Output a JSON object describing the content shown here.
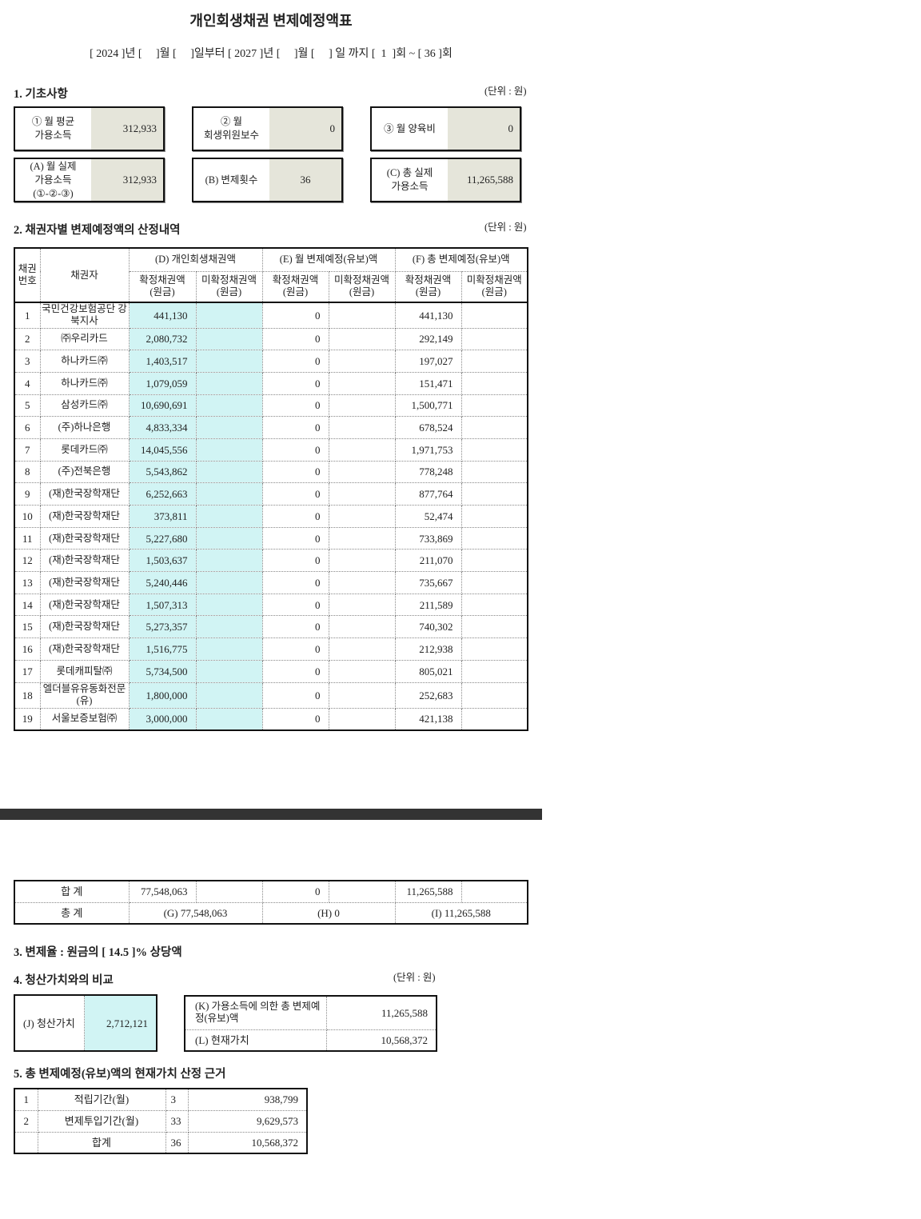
{
  "title": "개인회생채권 변제예정액표",
  "period": "[ 2024 ]년 [     ]월 [     ]일부터 [ 2027 ]년 [     ]월 [     ] 일 까지 [  1  ]회 ~ [ 36 ]회",
  "unit": "(단위 : 원)",
  "section1": {
    "title": "1. 기초사항",
    "boxes": [
      {
        "label": "① 월 평균\n가용소득",
        "value": "312,933"
      },
      {
        "label": "② 월\n회생위원보수",
        "value": "0"
      },
      {
        "label": "③ 월 양육비",
        "value": "0"
      },
      {
        "label": "(A) 월 실제\n가용소득\n(①-②-③)",
        "value": "312,933"
      },
      {
        "label": "(B) 변제횟수",
        "value": "36"
      },
      {
        "label": "(C) 총 실제\n가용소득",
        "value": "11,265,588"
      }
    ]
  },
  "section2": {
    "title": "2. 채권자별 변제예정액의 산정내역",
    "headers": {
      "no": "채권\n번호",
      "creditor": "채권자",
      "d": "(D) 개인회생채권액",
      "e": "(E) 월 변제예정(유보)액",
      "f": "(F) 총 변제예정(유보)액",
      "confirmed": "확정채권액\n(원금)",
      "unconfirmed": "미확정채권액\n(원금)"
    },
    "rows": [
      [
        "1",
        "국민건강보험공단 강북지사",
        "441,130",
        "",
        "0",
        "",
        "441,130",
        ""
      ],
      [
        "2",
        "㈜우리카드",
        "2,080,732",
        "",
        "0",
        "",
        "292,149",
        ""
      ],
      [
        "3",
        "하나카드㈜",
        "1,403,517",
        "",
        "0",
        "",
        "197,027",
        ""
      ],
      [
        "4",
        "하나카드㈜",
        "1,079,059",
        "",
        "0",
        "",
        "151,471",
        ""
      ],
      [
        "5",
        "삼성카드㈜",
        "10,690,691",
        "",
        "0",
        "",
        "1,500,771",
        ""
      ],
      [
        "6",
        "(주)하나은행",
        "4,833,334",
        "",
        "0",
        "",
        "678,524",
        ""
      ],
      [
        "7",
        "롯데카드㈜",
        "14,045,556",
        "",
        "0",
        "",
        "1,971,753",
        ""
      ],
      [
        "8",
        "(주)전북은행",
        "5,543,862",
        "",
        "0",
        "",
        "778,248",
        ""
      ],
      [
        "9",
        "(재)한국장학재단",
        "6,252,663",
        "",
        "0",
        "",
        "877,764",
        ""
      ],
      [
        "10",
        "(재)한국장학재단",
        "373,811",
        "",
        "0",
        "",
        "52,474",
        ""
      ],
      [
        "11",
        "(재)한국장학재단",
        "5,227,680",
        "",
        "0",
        "",
        "733,869",
        ""
      ],
      [
        "12",
        "(재)한국장학재단",
        "1,503,637",
        "",
        "0",
        "",
        "211,070",
        ""
      ],
      [
        "13",
        "(재)한국장학재단",
        "5,240,446",
        "",
        "0",
        "",
        "735,667",
        ""
      ],
      [
        "14",
        "(재)한국장학재단",
        "1,507,313",
        "",
        "0",
        "",
        "211,589",
        ""
      ],
      [
        "15",
        "(재)한국장학재단",
        "5,273,357",
        "",
        "0",
        "",
        "740,302",
        ""
      ],
      [
        "16",
        "(재)한국장학재단",
        "1,516,775",
        "",
        "0",
        "",
        "212,938",
        ""
      ],
      [
        "17",
        "롯데캐피탈㈜",
        "5,734,500",
        "",
        "0",
        "",
        "805,021",
        ""
      ],
      [
        "18",
        "엘더블유유동화전문(유)",
        "1,800,000",
        "",
        "0",
        "",
        "252,683",
        ""
      ],
      [
        "19",
        "서울보증보험㈜",
        "3,000,000",
        "",
        "0",
        "",
        "421,138",
        ""
      ]
    ],
    "sum": {
      "label": "합 계",
      "d1": "77,548,063",
      "d2": "",
      "e1": "0",
      "e2": "",
      "f1": "11,265,588",
      "f2": ""
    },
    "total": {
      "label": "총 계",
      "g": "(G) 77,548,063",
      "h": "(H) 0",
      "i": "(I) 11,265,588"
    }
  },
  "section3": {
    "title": "3. 변제율 : 원금의 [ 14.5 ]% 상당액"
  },
  "section4": {
    "title": "4. 청산가치와의 비교",
    "j_label": "(J) 청산가치",
    "j_value": "2,712,121",
    "k_label": "(K) 가용소득에 의한 총 변제예정(유보)액",
    "k_value": "11,265,588",
    "l_label": "(L) 현재가치",
    "l_value": "10,568,372"
  },
  "section5": {
    "title": "5. 총 변제예정(유보)액의 현재가치 산정 근거",
    "rows": [
      [
        "1",
        "적립기간(월)",
        "3",
        "938,799"
      ],
      [
        "2",
        "변제투입기간(월)",
        "33",
        "9,629,573"
      ],
      [
        "",
        "합계",
        "36",
        "10,568,372"
      ]
    ]
  },
  "colors": {
    "beige": "#e5e5da",
    "cyan": "#d1f4f4"
  }
}
